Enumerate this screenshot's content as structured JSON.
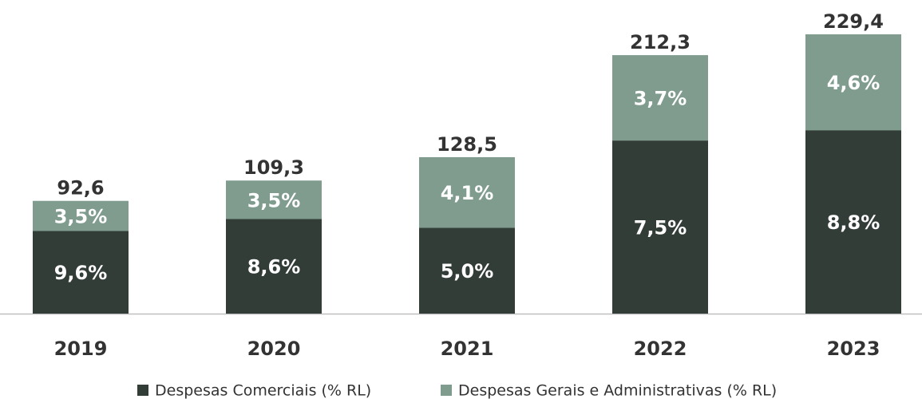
{
  "chart_data": {
    "type": "stacked_bar",
    "categories": [
      "2019",
      "2020",
      "2021",
      "2022",
      "2023"
    ],
    "series": [
      {
        "name": "Despesas Comerciais (% RL)",
        "color": "#323d38",
        "values": [
          9.6,
          8.6,
          5.0,
          7.5,
          8.8
        ],
        "value_labels": [
          "9,6%",
          "8,6%",
          "5,0%",
          "7,5%",
          "8,8%"
        ]
      },
      {
        "name": "Despesas Gerais e Administrativas (% RL)",
        "color": "#7f9c8f",
        "values": [
          3.5,
          3.5,
          4.1,
          3.7,
          4.6
        ],
        "value_labels": [
          "3,5%",
          "3,5%",
          "4,1%",
          "3,7%",
          "4,6%"
        ]
      }
    ],
    "totals": {
      "values": [
        92.6,
        109.3,
        128.5,
        212.3,
        229.4
      ],
      "value_labels": [
        "92,6",
        "109,3",
        "128,5",
        "212,3",
        "229,4"
      ]
    },
    "ylim": [
      0,
      257.6
    ],
    "legend": "bottom"
  }
}
